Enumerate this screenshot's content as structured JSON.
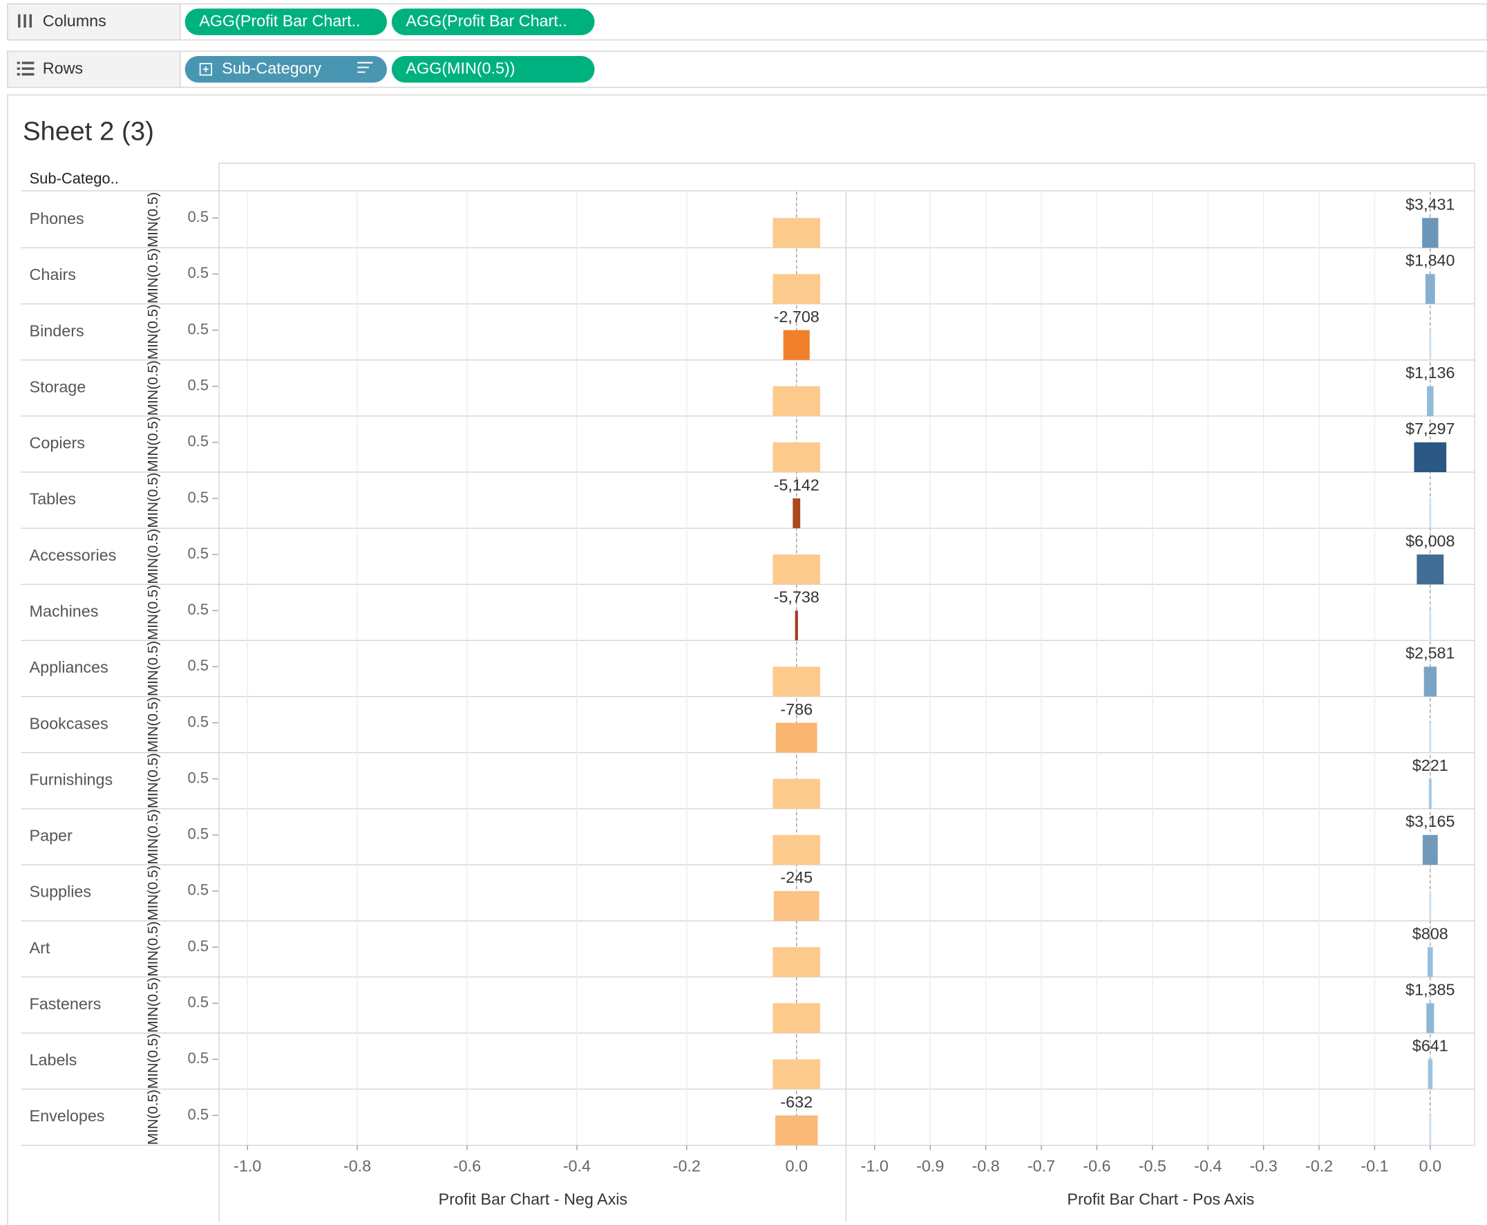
{
  "shelves": {
    "columns": {
      "label": "Columns",
      "pills": [
        "AGG(Profit Bar Chart..",
        "AGG(Profit Bar Chart.."
      ]
    },
    "rows": {
      "label": "Rows",
      "pills": [
        "Sub-Category",
        "AGG(MIN(0.5))"
      ]
    }
  },
  "sheet_title": "Sheet 2 (3)",
  "row_header": "Sub-Catego..",
  "chart_data": [
    {
      "type": "bar",
      "x_label": "Profit Bar Chart - Neg Axis",
      "y_label": "MIN(0.5)",
      "categories": [
        "Phones",
        "Chairs",
        "Binders",
        "Storage",
        "Copiers",
        "Tables",
        "Accessories",
        "Machines",
        "Appliances",
        "Bookcases",
        "Furnishings",
        "Paper",
        "Supplies",
        "Art",
        "Fasteners",
        "Labels",
        "Envelopes"
      ],
      "values": [
        0.5,
        0.5,
        0.5,
        0.5,
        0.5,
        0.5,
        0.5,
        0.5,
        0.5,
        0.5,
        0.5,
        0.5,
        0.5,
        0.5,
        0.5,
        0.5,
        0.5
      ],
      "profit": [
        null,
        null,
        -2708,
        null,
        null,
        -5142,
        null,
        -5738,
        null,
        -786,
        null,
        null,
        -245,
        null,
        null,
        null,
        -632
      ],
      "profit_labels": [
        null,
        null,
        "-2,708",
        null,
        null,
        "-5,142",
        null,
        "-5,738",
        null,
        "-786",
        null,
        null,
        "-245",
        null,
        null,
        null,
        "-632"
      ],
      "xlim": [
        -1.05,
        0.09
      ],
      "xticks": [
        {
          "value": -1,
          "label": "-1.0"
        },
        {
          "value": -0.8,
          "label": "-0.8"
        },
        {
          "value": -0.6,
          "label": "-0.6"
        },
        {
          "value": -0.4,
          "label": "-0.4"
        },
        {
          "value": -0.2,
          "label": "-0.2"
        },
        {
          "value": 0,
          "label": "0.0"
        }
      ],
      "ylim": [
        0,
        0.94
      ],
      "yticks": [
        0.5
      ],
      "grid": true
    },
    {
      "type": "bar",
      "x_label": "Profit Bar Chart - Pos Axis",
      "values": [
        0.5,
        0.5,
        0.5,
        0.5,
        0.5,
        0.5,
        0.5,
        0.5,
        0.5,
        0.5,
        0.5,
        0.5,
        0.5,
        0.5,
        0.5,
        0.5,
        0.5
      ],
      "profit": [
        3431,
        1840,
        null,
        1136,
        7297,
        null,
        6008,
        null,
        2581,
        null,
        221,
        3165,
        null,
        808,
        1385,
        641,
        null
      ],
      "profit_labels": [
        "$3,431",
        "$1,840",
        null,
        "$1,136",
        "$7,297",
        null,
        "$6,008",
        null,
        "$2,581",
        null,
        "$221",
        "$3,165",
        null,
        "$808",
        "$1,385",
        "$641",
        null
      ],
      "xlim": [
        -1.05,
        0.08
      ],
      "xticks": [
        {
          "value": -1,
          "label": "-1.0"
        },
        {
          "value": -0.9,
          "label": "-0.9"
        },
        {
          "value": -0.8,
          "label": "-0.8"
        },
        {
          "value": -0.7,
          "label": "-0.7"
        },
        {
          "value": -0.6,
          "label": "-0.6"
        },
        {
          "value": -0.5,
          "label": "-0.5"
        },
        {
          "value": -0.4,
          "label": "-0.4"
        },
        {
          "value": -0.3,
          "label": "-0.3"
        },
        {
          "value": -0.2,
          "label": "-0.2"
        },
        {
          "value": -0.1,
          "label": "-0.1"
        },
        {
          "value": 0,
          "label": "0.0"
        }
      ],
      "ylim": [
        0,
        0.94
      ],
      "yticks": [
        0.5
      ],
      "grid": true
    }
  ]
}
